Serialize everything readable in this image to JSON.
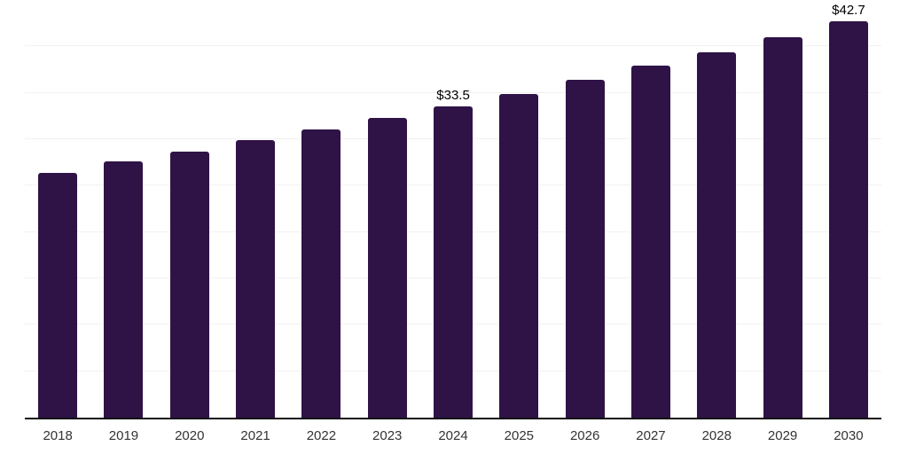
{
  "chart_data": {
    "type": "bar",
    "title": "",
    "xlabel": "",
    "ylabel": "",
    "categories": [
      "2018",
      "2019",
      "2020",
      "2021",
      "2022",
      "2023",
      "2024",
      "2025",
      "2026",
      "2027",
      "2028",
      "2029",
      "2030"
    ],
    "values": [
      26.4,
      27.6,
      28.7,
      29.9,
      31.1,
      32.3,
      33.5,
      34.9,
      36.4,
      37.9,
      39.4,
      41.0,
      42.7
    ],
    "point_labels": [
      "",
      "",
      "",
      "",
      "",
      "",
      "$33.5",
      "",
      "",
      "",
      "",
      "",
      "$42.7"
    ],
    "ylim": [
      0,
      45
    ],
    "gridline_step": 5,
    "y_tick_labels_visible": false,
    "grid": "horizontal",
    "legend_position": "none",
    "colors": {
      "bar": "#2f1347",
      "gridline": "#f2f2f2",
      "axis_line": "#111111",
      "x_label": "#333333",
      "point_label": "#000000",
      "background": "#ffffff"
    }
  }
}
